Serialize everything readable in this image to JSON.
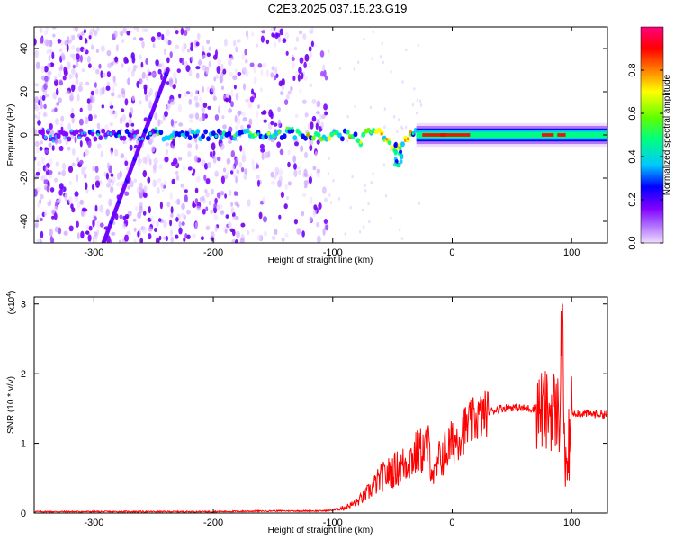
{
  "title": "C2E3.2025.037.15.23.G19",
  "chart_data": [
    {
      "type": "heatmap",
      "xlabel": "Height of straight line (km)",
      "ylabel": "Frequency (Hz)",
      "xlim": [
        -350,
        130
      ],
      "ylim": [
        -50,
        50
      ],
      "xticks": [
        -300,
        -200,
        -100,
        0,
        100
      ],
      "yticks": [
        -40,
        -20,
        0,
        20,
        40
      ],
      "colorbar": {
        "label": "Normalized spectral amplitude",
        "range": [
          0.0,
          1.0
        ],
        "ticks": [
          0.0,
          0.2,
          0.4,
          0.6,
          0.8
        ],
        "colors": [
          "#efdcff",
          "#8000ff",
          "#0000ff",
          "#00c8ff",
          "#00ff80",
          "#60ff00",
          "#ffff00",
          "#ff8000",
          "#ff0000",
          "#ff0080"
        ]
      },
      "features": {
        "noise_region_x": [
          -350,
          -105
        ],
        "carrier_freq": 0,
        "diagonal_line": [
          [
            -292,
            -50
          ],
          [
            -238,
            30
          ]
        ]
      }
    },
    {
      "type": "line",
      "xlabel": "Height of straight line (km)",
      "ylabel": "SNR (10 * v/v)",
      "yscale_label": "(x10",
      "yscale_exp": "4",
      "xlim": [
        -350,
        130
      ],
      "ylim": [
        0,
        3.1
      ],
      "xticks": [
        -300,
        -200,
        -100,
        0,
        100
      ],
      "yticks": [
        0,
        1,
        2,
        3
      ],
      "color": "#ff0000",
      "series": [
        {
          "x": [
            -350,
            -200,
            -150,
            -110,
            -100,
            -90,
            -80,
            -70,
            -60,
            -50,
            -40,
            -30,
            -25,
            -20,
            -15,
            -10,
            0,
            10,
            20,
            30,
            40,
            50,
            60,
            70,
            80,
            85,
            90,
            92,
            95,
            100,
            110,
            120,
            130
          ],
          "y": [
            0.02,
            0.02,
            0.03,
            0.03,
            0.04,
            0.08,
            0.15,
            0.3,
            0.5,
            0.6,
            0.7,
            0.85,
            0.9,
            0.95,
            0.5,
            0.8,
            1.0,
            1.2,
            1.35,
            1.45,
            1.5,
            1.52,
            1.5,
            1.5,
            1.45,
            1.5,
            1.4,
            3.0,
            0.3,
            1.45,
            1.43,
            1.42,
            1.42
          ]
        }
      ]
    }
  ]
}
